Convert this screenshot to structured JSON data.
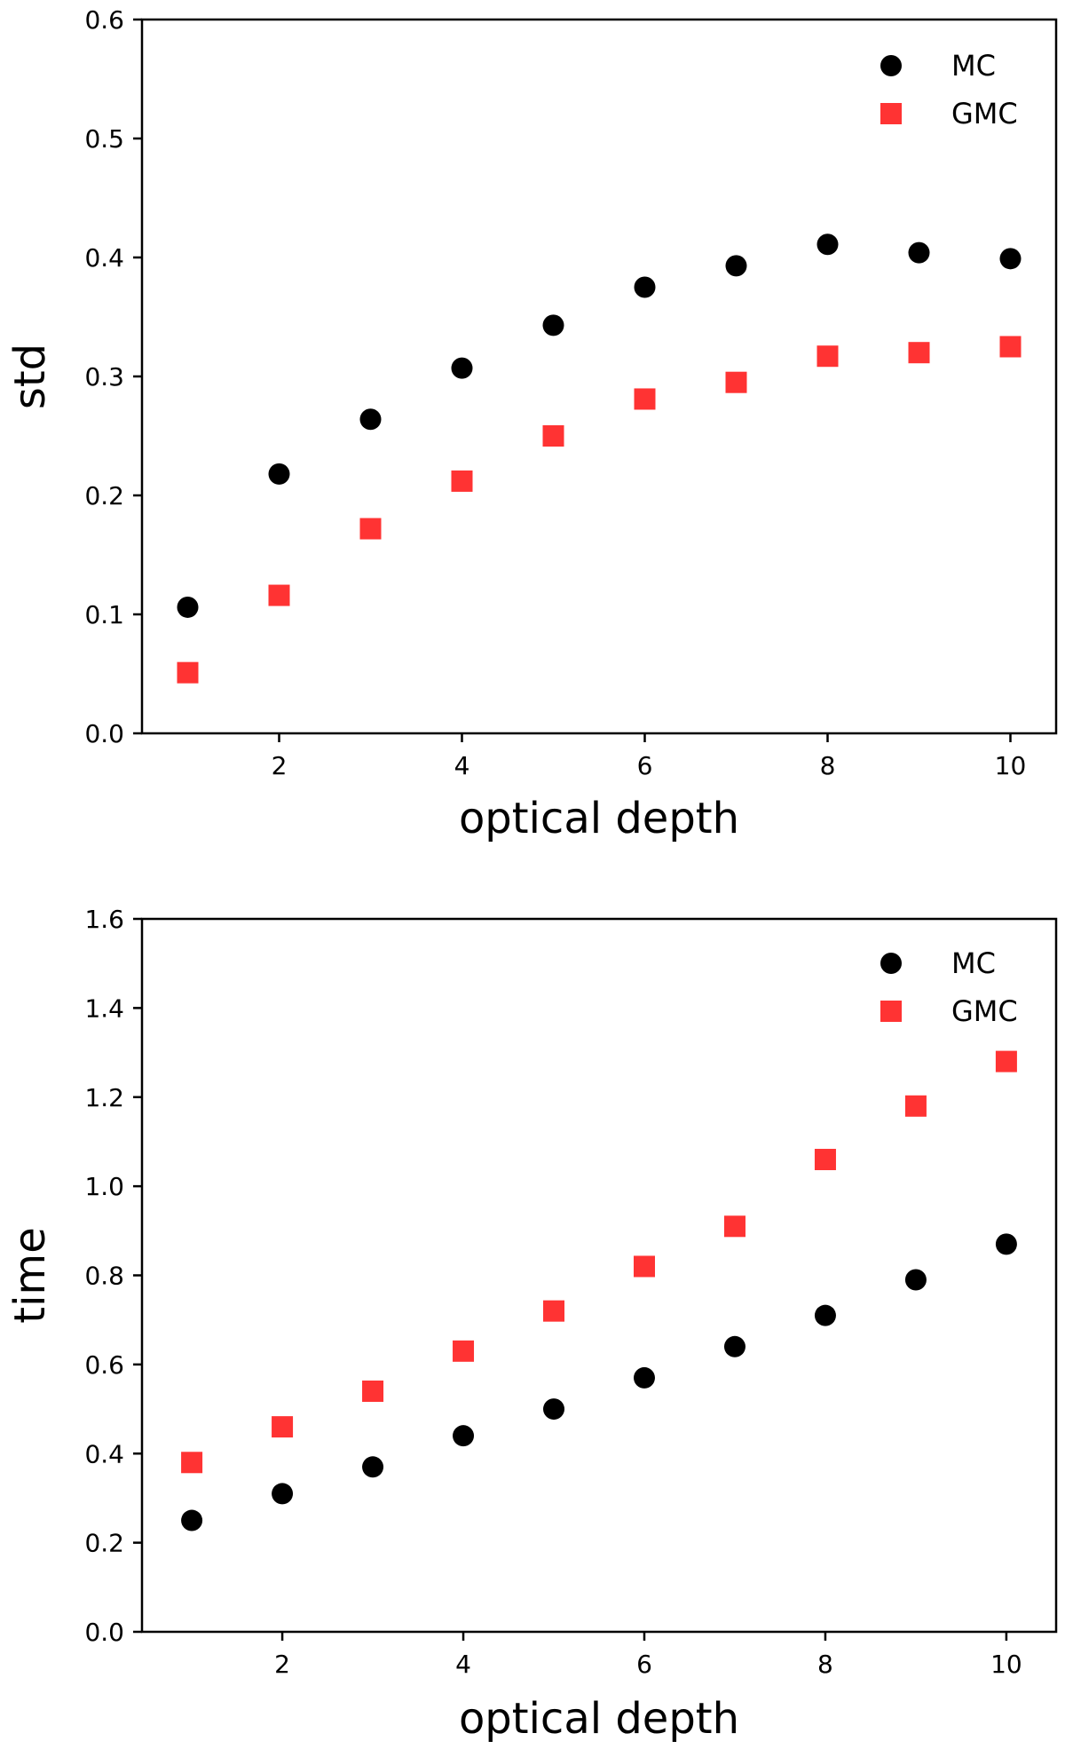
{
  "colors": {
    "mc": "#000000",
    "gmc": "#ff3333"
  },
  "chart_data": [
    {
      "type": "scatter",
      "xlabel": "optical depth",
      "ylabel": "std",
      "xlim": [
        0.5,
        10.5
      ],
      "ylim": [
        0.0,
        0.6
      ],
      "xticks": [
        2,
        4,
        6,
        8,
        10
      ],
      "yticks": [
        0.0,
        0.1,
        0.2,
        0.3,
        0.4,
        0.5,
        0.6
      ],
      "ytick_labels": [
        "0.0",
        "0.1",
        "0.2",
        "0.3",
        "0.4",
        "0.5",
        "0.6"
      ],
      "legend": "top-right",
      "x": [
        1,
        2,
        3,
        4,
        5,
        6,
        7,
        8,
        9,
        10
      ],
      "series": [
        {
          "name": "MC",
          "marker": "circle",
          "values": [
            0.106,
            0.218,
            0.264,
            0.307,
            0.343,
            0.375,
            0.393,
            0.411,
            0.404,
            0.399
          ]
        },
        {
          "name": "GMC",
          "marker": "square",
          "values": [
            0.051,
            0.116,
            0.172,
            0.212,
            0.25,
            0.281,
            0.295,
            0.317,
            0.32,
            0.325
          ]
        }
      ]
    },
    {
      "type": "scatter",
      "xlabel": "optical depth",
      "ylabel": "time",
      "xlim": [
        0.45,
        10.55
      ],
      "ylim": [
        0.0,
        1.6
      ],
      "xticks": [
        2,
        4,
        6,
        8,
        10
      ],
      "yticks": [
        0.0,
        0.2,
        0.4,
        0.6,
        0.8,
        1.0,
        1.2,
        1.4,
        1.6
      ],
      "ytick_labels": [
        "0.0",
        "0.2",
        "0.4",
        "0.6",
        "0.8",
        "1.0",
        "1.2",
        "1.4",
        "1.6"
      ],
      "legend": "top-right",
      "x": [
        1,
        2,
        3,
        4,
        5,
        6,
        7,
        8,
        9,
        10
      ],
      "series": [
        {
          "name": "MC",
          "marker": "circle",
          "values": [
            0.25,
            0.31,
            0.37,
            0.44,
            0.5,
            0.57,
            0.64,
            0.71,
            0.79,
            0.87
          ]
        },
        {
          "name": "GMC",
          "marker": "square",
          "values": [
            0.38,
            0.46,
            0.54,
            0.63,
            0.72,
            0.82,
            0.91,
            1.06,
            1.18,
            1.28
          ]
        }
      ]
    }
  ]
}
